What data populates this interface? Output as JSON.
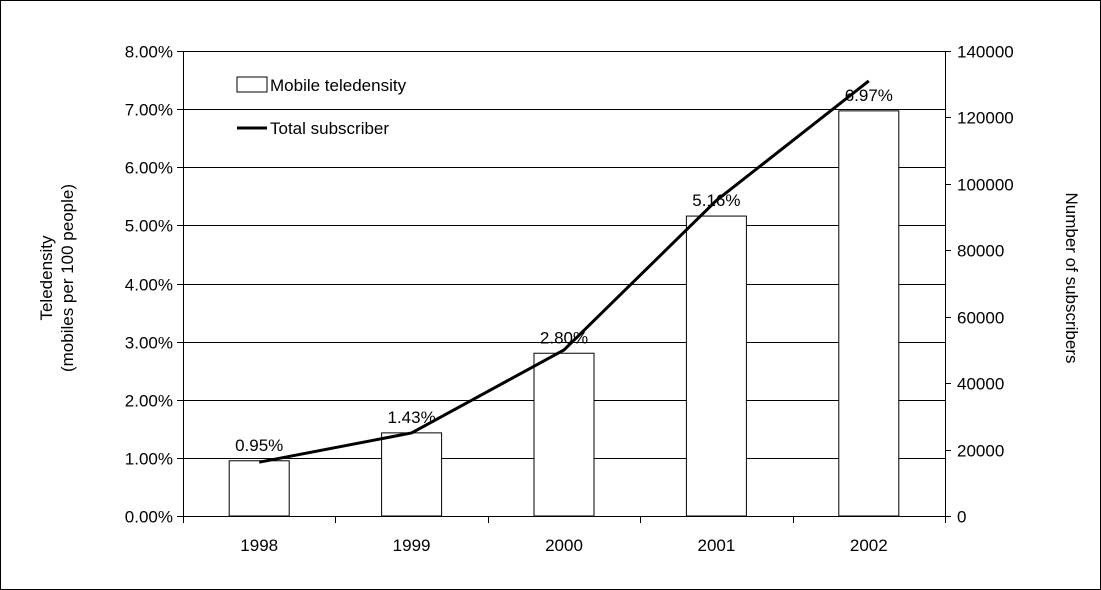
{
  "chart_data": {
    "type": "bar",
    "categories": [
      "1998",
      "1999",
      "2000",
      "2001",
      "2002"
    ],
    "series": [
      {
        "name": "Mobile teledensity",
        "type": "bar",
        "axis": "left",
        "values": [
          0.95,
          1.43,
          2.8,
          5.16,
          6.97
        ],
        "data_labels": [
          "0.95%",
          "1.43%",
          "2.80%",
          "5.16%",
          "6.97%"
        ]
      },
      {
        "name": "Total subscriber",
        "type": "line",
        "axis": "right",
        "values": [
          16200,
          25000,
          50000,
          95000,
          131000
        ]
      }
    ],
    "left_axis": {
      "label_line1": "Teledensity",
      "label_line2": "(mobiles per 100 people)",
      "ylim": [
        0,
        8
      ],
      "ticks": [
        0,
        1,
        2,
        3,
        4,
        5,
        6,
        7,
        8
      ],
      "tick_labels": [
        "0.00%",
        "1.00%",
        "2.00%",
        "3.00%",
        "4.00%",
        "5.00%",
        "6.00%",
        "7.00%",
        "8.00%"
      ]
    },
    "right_axis": {
      "label": "Number of subscribers",
      "ylim": [
        0,
        140000
      ],
      "ticks": [
        0,
        20000,
        40000,
        60000,
        80000,
        100000,
        120000,
        140000
      ],
      "tick_labels": [
        "0",
        "20000",
        "40000",
        "60000",
        "80000",
        "100000",
        "120000",
        "140000"
      ]
    },
    "legend": {
      "placement": "top-left",
      "items": [
        {
          "label": "Mobile teledensity",
          "symbol": "bar"
        },
        {
          "label": "Total subscriber",
          "symbol": "line"
        }
      ]
    },
    "grid": true,
    "colors": {
      "bar_fill": "#ffffff",
      "bar_stroke": "#000000",
      "line": "#000000",
      "grid": "#000000",
      "frame": "#000000"
    }
  }
}
